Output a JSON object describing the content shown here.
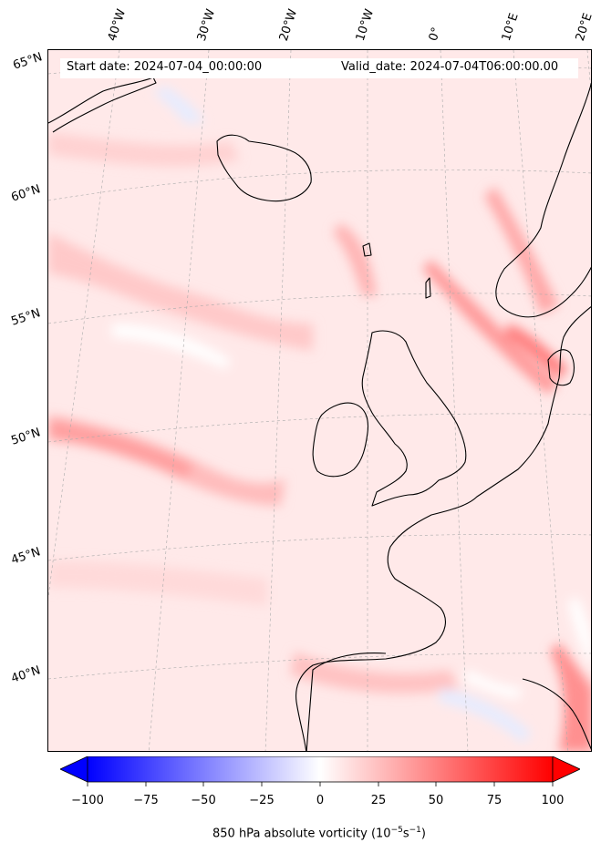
{
  "header": {
    "start_date": "Start date: 2024-07-04_00:00:00",
    "valid_date": "Valid_date: 2024-07-04T06:00:00.00"
  },
  "lon_labels": [
    "40°W",
    "30°W",
    "20°W",
    "10°W",
    "0°",
    "10°E",
    "20°E"
  ],
  "lat_labels": [
    "65°N",
    "60°N",
    "55°N",
    "50°N",
    "45°N",
    "40°N"
  ],
  "colorbar": {
    "title_prefix": "850 hPa absolute vorticity (10",
    "title_exp1": "−5",
    "title_mid": "s",
    "title_exp2": "−1",
    "title_suffix": ")",
    "ticks": [
      "−100",
      "−75",
      "−50",
      "−25",
      "0",
      "25",
      "50",
      "75",
      "100"
    ],
    "range": [
      -100,
      100
    ],
    "low_color": "#0000ff",
    "mid_color": "#ffffff",
    "high_color": "#ff0000"
  },
  "map": {
    "background_color": "#ffe9e9",
    "coast_color": "#000000",
    "gridline_color": "#aaaaaa"
  }
}
